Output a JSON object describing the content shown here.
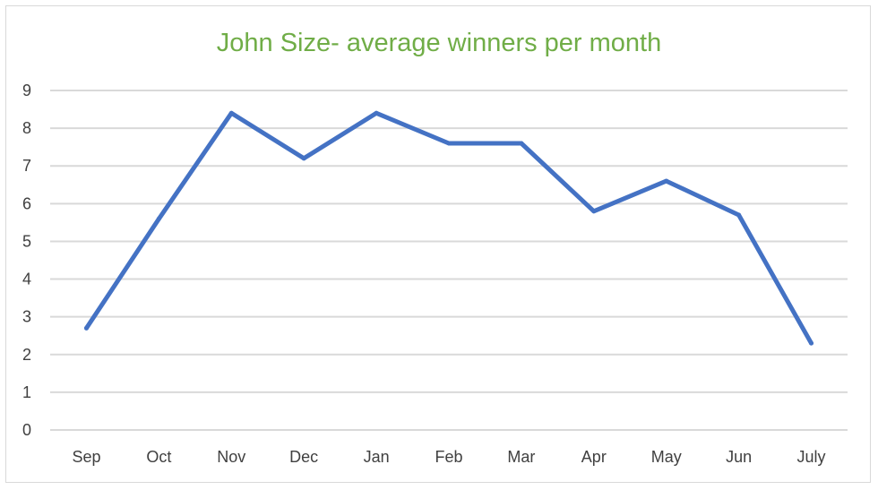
{
  "chart_data": {
    "type": "line",
    "title": "John Size- average winners per month",
    "xlabel": "",
    "ylabel": "",
    "categories": [
      "Sep",
      "Oct",
      "Nov",
      "Dec",
      "Jan",
      "Feb",
      "Mar",
      "Apr",
      "May",
      "Jun",
      "July"
    ],
    "series": [
      {
        "values": [
          2.7,
          5.6,
          8.4,
          7.2,
          8.4,
          7.6,
          7.6,
          5.8,
          6.6,
          5.7,
          2.3
        ],
        "color": "#4472c4"
      }
    ],
    "ylim": [
      0,
      9
    ],
    "yticks": [
      "0",
      "1",
      "2",
      "3",
      "4",
      "5",
      "6",
      "7",
      "8",
      "9"
    ],
    "grid": true,
    "legend": "none",
    "title_color": "#70ad47"
  }
}
